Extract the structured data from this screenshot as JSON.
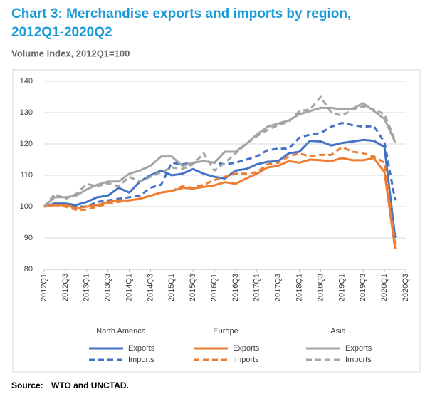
{
  "chart_data": {
    "type": "line",
    "title": "Chart 3: Merchandise exports and imports by region,",
    "title_line2": "2012Q1-2020Q2",
    "subtitle": "Volume index, 2012Q1=100",
    "categories": [
      "2012Q1",
      null,
      "2012Q3",
      null,
      "2013Q1",
      null,
      "2013Q3",
      null,
      "2014Q1",
      null,
      "2014Q3",
      null,
      "2015Q1",
      null,
      "2015Q3",
      null,
      "2016Q1",
      null,
      "2016Q3",
      null,
      "2017Q1",
      null,
      "2017Q3",
      null,
      "2018Q1",
      null,
      "2018Q3",
      null,
      "2019Q1",
      null,
      "2019Q3",
      null,
      "2020Q1",
      null,
      "2020Q3"
    ],
    "ylim": [
      80,
      140
    ],
    "yticks": [
      80,
      90,
      100,
      110,
      120,
      130,
      140
    ],
    "grid": true,
    "legend_groups": [
      "North America",
      "Europe",
      "Asia"
    ],
    "series": [
      {
        "name": "Exports",
        "color": "#4472c4",
        "dashed": false,
        "values": [
          100,
          101,
          101,
          100.5,
          101.5,
          103,
          103.5,
          106,
          104.5,
          108,
          110,
          111.5,
          110,
          110.5,
          112,
          110.5,
          109.5,
          109,
          111.5,
          112,
          113.5,
          114.3,
          114.5,
          117,
          117.5,
          121,
          120.8,
          119.5,
          120.3,
          120.8,
          121.3,
          121,
          119,
          90,
          null
        ]
      },
      {
        "name": "Imports",
        "color": "#4472c4",
        "dashed": true,
        "values": [
          100,
          101,
          100.5,
          100,
          100,
          101.5,
          102,
          102.5,
          103,
          103.5,
          106,
          107,
          114,
          113.5,
          114,
          114.5,
          114,
          113.5,
          114,
          115,
          116,
          118,
          118.5,
          118.5,
          122,
          123,
          123.5,
          125.5,
          126.7,
          126,
          125.5,
          125.7,
          120.5,
          102,
          null
        ]
      },
      {
        "name": "Exports",
        "color": "#ed7d31",
        "dashed": false,
        "values": [
          100,
          100.5,
          100.5,
          99.5,
          100,
          100.5,
          101.5,
          102,
          102,
          102.5,
          103.5,
          104.5,
          105,
          106,
          105.8,
          106.3,
          106.8,
          107.8,
          107.3,
          109,
          110.5,
          112.5,
          113,
          114.5,
          114,
          115,
          114.8,
          114.5,
          115.5,
          114.8,
          114.8,
          115.5,
          111,
          86.5,
          null
        ]
      },
      {
        "name": "Imports",
        "color": "#ed7d31",
        "dashed": true,
        "values": [
          100,
          100.5,
          100,
          99,
          99,
          100,
          101,
          101.5,
          102,
          102.5,
          103.5,
          104.5,
          105,
          106.5,
          106,
          107,
          108.5,
          109.5,
          110.5,
          110.5,
          111,
          113.5,
          114,
          116,
          117,
          116,
          116.5,
          116.5,
          119,
          117.5,
          117,
          116,
          114,
          88,
          null
        ]
      },
      {
        "name": "Exports",
        "color": "#a5a5a5",
        "dashed": false,
        "values": [
          100,
          103,
          103,
          103.5,
          105.5,
          107,
          108,
          108,
          110.5,
          111.5,
          113,
          116,
          116,
          113,
          114,
          114.5,
          114,
          117.5,
          117.5,
          120,
          123,
          125.5,
          126.5,
          127.5,
          129.5,
          130.5,
          131.5,
          131.5,
          131,
          131.3,
          133,
          130.5,
          128,
          120.5,
          null
        ]
      },
      {
        "name": "Imports",
        "color": "#a5a5a5",
        "dashed": true,
        "values": [
          100,
          104,
          102.5,
          104,
          107.2,
          106.5,
          107.5,
          106.5,
          109.5,
          108,
          109.5,
          111,
          112.5,
          112,
          113.5,
          117,
          111.5,
          114,
          117,
          120,
          122.5,
          124.5,
          126,
          127,
          130.5,
          131,
          135,
          130,
          129,
          131,
          132,
          131,
          129.5,
          121,
          null
        ]
      }
    ],
    "source_label": "Source:",
    "source": "WTO and UNCTAD."
  }
}
